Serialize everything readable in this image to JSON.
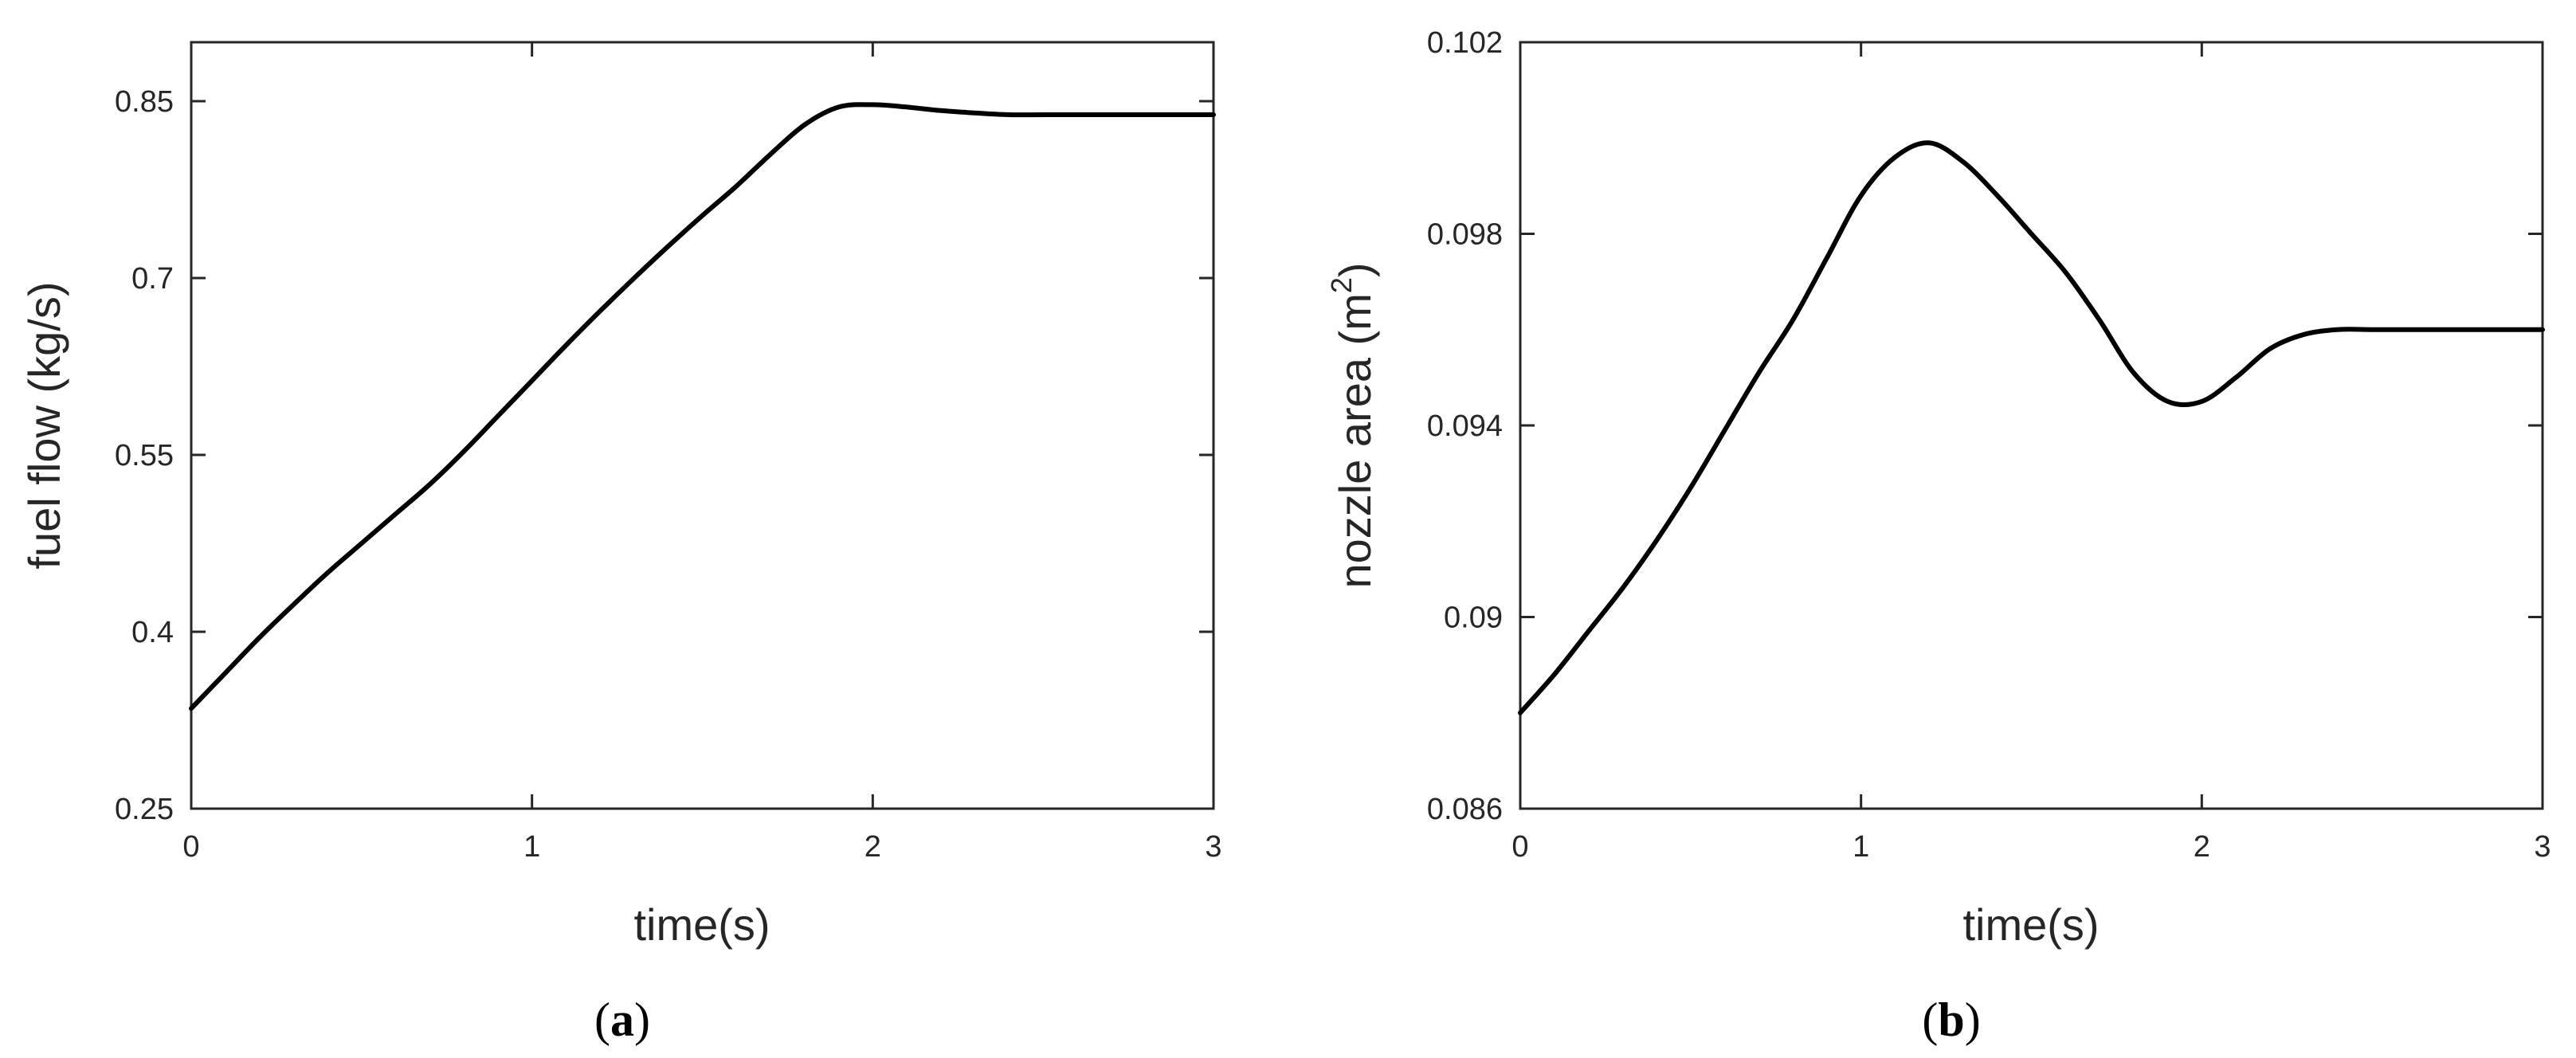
{
  "chart_data": [
    {
      "type": "line",
      "panel_label": "a",
      "xlabel": "time(s)",
      "ylabel": "fuel flow (kg/s)",
      "xlim": [
        0,
        3
      ],
      "ylim": [
        0.25,
        0.9
      ],
      "xticks": [
        "0",
        "1",
        "2",
        "3"
      ],
      "yticks": [
        "0.25",
        "0.4",
        "0.55",
        "0.7",
        "0.85"
      ],
      "grid": false,
      "series": [
        {
          "x": [
            0,
            0.1,
            0.2,
            0.3,
            0.4,
            0.5,
            0.6,
            0.7,
            0.8,
            0.9,
            1.0,
            1.1,
            1.2,
            1.3,
            1.4,
            1.5,
            1.6,
            1.7,
            1.8,
            1.9,
            2.0,
            2.1,
            2.2,
            2.3,
            2.4,
            2.5,
            2.6,
            2.7,
            2.8,
            2.9,
            3.0
          ],
          "y": [
            0.335,
            0.365,
            0.395,
            0.423,
            0.45,
            0.475,
            0.5,
            0.525,
            0.553,
            0.583,
            0.613,
            0.643,
            0.672,
            0.7,
            0.727,
            0.753,
            0.778,
            0.805,
            0.83,
            0.845,
            0.847,
            0.845,
            0.842,
            0.84,
            0.8385,
            0.8385,
            0.8385,
            0.8385,
            0.8385,
            0.8385,
            0.8385
          ]
        }
      ]
    },
    {
      "type": "line",
      "panel_label": "b",
      "xlabel": "time(s)",
      "ylabel_text": "nozzle area (m",
      "ylabel_sup": "2",
      "ylabel_close": ")",
      "xlim": [
        0,
        3
      ],
      "ylim": [
        0.086,
        0.102
      ],
      "xticks": [
        "0",
        "1",
        "2",
        "3"
      ],
      "yticks": [
        "0.086",
        "0.09",
        "0.094",
        "0.098",
        "0.102"
      ],
      "grid": false,
      "series": [
        {
          "x": [
            0,
            0.1,
            0.2,
            0.3,
            0.4,
            0.5,
            0.6,
            0.7,
            0.8,
            0.9,
            1.0,
            1.1,
            1.2,
            1.3,
            1.4,
            1.5,
            1.6,
            1.7,
            1.8,
            1.9,
            2.0,
            2.1,
            2.2,
            2.3,
            2.4,
            2.5,
            2.6,
            2.7,
            2.8,
            2.9,
            3.0
          ],
          "y": [
            0.088,
            0.0888,
            0.0897,
            0.0906,
            0.0916,
            0.0927,
            0.0939,
            0.0951,
            0.0962,
            0.0975,
            0.0988,
            0.0996,
            0.0999,
            0.0995,
            0.0988,
            0.098,
            0.0972,
            0.0962,
            0.0951,
            0.0945,
            0.0945,
            0.095,
            0.0956,
            0.0959,
            0.096,
            0.096,
            0.096,
            0.096,
            0.096,
            0.096,
            0.096
          ]
        }
      ]
    }
  ]
}
